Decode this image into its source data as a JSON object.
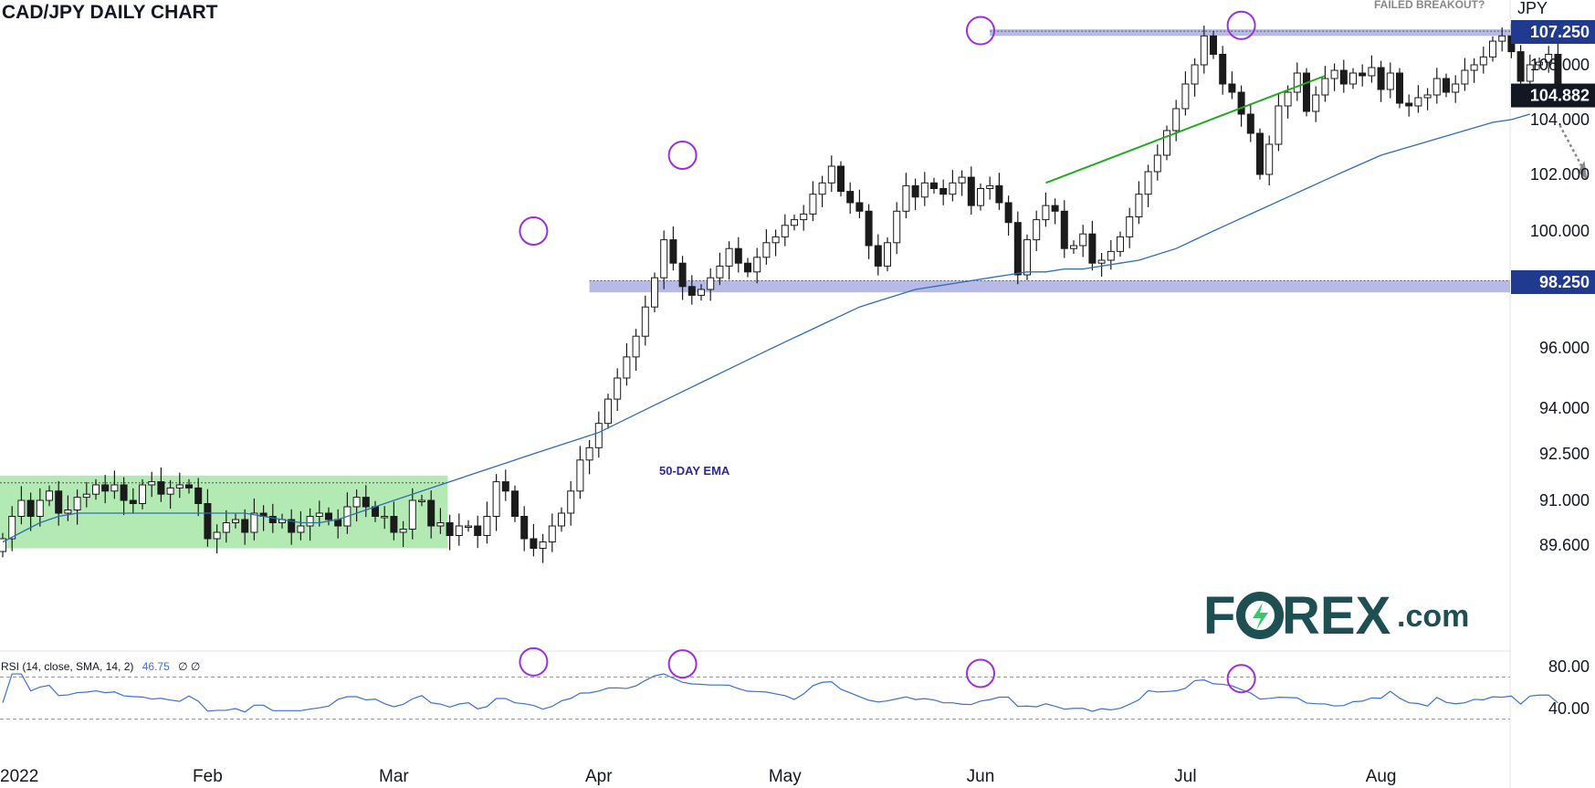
{
  "colors": {
    "bull_body": "#ffffff",
    "bear_body": "#1b1b1b",
    "wick": "#1b1b1b",
    "ema": "#2f6db5",
    "rsi": "#3a6fd8",
    "trendline": "#22aa22",
    "zone_blue": "#9fa3df",
    "zone_green": "#a6e6a6",
    "circle": "#9b30d9",
    "badge_blue": "#1f3a8f",
    "badge_dark": "#131722",
    "logo": "#1e4f53"
  },
  "logo": {
    "part1": "F",
    "part2": "REX",
    "part3": ".com"
  },
  "chart_data": {
    "type": "candlestick",
    "title": "CAD/JPY DAILY CHART",
    "currency_label": "JPY",
    "price_ticks": [
      107.25,
      106.0,
      104.882,
      104.0,
      102.0,
      100.0,
      98.25,
      96.0,
      94.0,
      92.5,
      91.0,
      89.6
    ],
    "price_tick_labels": [
      "107.250",
      "106.000",
      "104.882",
      "104.000",
      "102.000",
      "100.000",
      "98.250",
      "96.000",
      "94.000",
      "92.500",
      "91.000",
      "89.600"
    ],
    "highlighted_levels": [
      {
        "label": "107.250",
        "value": 107.25,
        "style": "blue"
      },
      {
        "label": "104.882",
        "value": 104.882,
        "style": "dark"
      },
      {
        "label": "98.250",
        "value": 98.25,
        "style": "blue"
      }
    ],
    "date_labels": [
      "2022",
      "Feb",
      "Mar",
      "Apr",
      "May",
      "Jun",
      "Jul",
      "Aug"
    ],
    "date_label_index": [
      0,
      22,
      42,
      64,
      84,
      105,
      127,
      148
    ],
    "closes": [
      89.8,
      90.5,
      91.0,
      90.5,
      91.0,
      91.3,
      90.6,
      90.7,
      91.1,
      91.2,
      91.5,
      91.3,
      91.5,
      91.0,
      90.9,
      91.5,
      91.6,
      91.2,
      91.4,
      91.5,
      91.4,
      90.9,
      89.8,
      90.0,
      90.3,
      90.4,
      90.0,
      90.6,
      90.5,
      90.3,
      90.4,
      90.0,
      90.2,
      90.5,
      90.6,
      90.4,
      90.2,
      90.8,
      91.1,
      90.8,
      90.5,
      90.5,
      90.0,
      90.1,
      91.0,
      91.0,
      90.2,
      90.3,
      89.9,
      90.2,
      90.2,
      89.9,
      90.5,
      91.6,
      91.3,
      90.5,
      89.8,
      89.5,
      89.7,
      90.2,
      90.6,
      91.3,
      92.3,
      92.7,
      93.5,
      94.3,
      95.0,
      95.7,
      96.4,
      97.4,
      98.4,
      99.7,
      98.9,
      98.1,
      97.8,
      98.0,
      98.4,
      98.8,
      99.4,
      98.9,
      98.6,
      99.1,
      99.6,
      99.8,
      100.2,
      100.4,
      100.6,
      101.3,
      101.7,
      102.3,
      101.4,
      101.0,
      100.7,
      99.5,
      98.8,
      99.6,
      100.7,
      101.6,
      101.2,
      101.7,
      101.5,
      101.3,
      101.7,
      101.9,
      100.9,
      101.5,
      101.6,
      101.0,
      100.3,
      98.5,
      99.7,
      100.4,
      100.9,
      100.7,
      99.4,
      99.5,
      99.9,
      98.9,
      99.0,
      99.3,
      99.8,
      100.5,
      101.3,
      102.1,
      102.7,
      103.6,
      104.4,
      105.3,
      106.0,
      107.1,
      106.4,
      105.3,
      105.0,
      104.2,
      103.5,
      102.0,
      103.1,
      104.5,
      105.0,
      105.7,
      104.3,
      104.9,
      105.5,
      105.8,
      105.3,
      105.7,
      105.6,
      105.9,
      105.1,
      105.7,
      104.6,
      104.5,
      104.8,
      104.9,
      105.5,
      105.0,
      105.3,
      105.8,
      106.0,
      106.3,
      106.9,
      107.1,
      106.5,
      105.4,
      106.0,
      106.1,
      106.4,
      104.882
    ],
    "ema_label": "50-DAY EMA",
    "ema_series": [
      89.7,
      90.0,
      90.3,
      90.5,
      90.6,
      90.6,
      90.6,
      90.6,
      90.6,
      90.6,
      90.6,
      90.6,
      90.6,
      90.6,
      90.5,
      90.4,
      90.3,
      90.3,
      90.4,
      90.6,
      90.8,
      91.0,
      91.2,
      91.4,
      91.6,
      91.8,
      92.0,
      92.2,
      92.4,
      92.6,
      92.8,
      93.0,
      93.2,
      93.5,
      93.8,
      94.1,
      94.4,
      94.7,
      95.0,
      95.3,
      95.6,
      95.9,
      96.2,
      96.5,
      96.8,
      97.1,
      97.4,
      97.6,
      97.8,
      98.0,
      98.1,
      98.2,
      98.3,
      98.4,
      98.5,
      98.6,
      98.6,
      98.7,
      98.7,
      98.8,
      98.9,
      99.0,
      99.2,
      99.4,
      99.7,
      100.0,
      100.3,
      100.6,
      100.9,
      101.2,
      101.5,
      101.8,
      102.1,
      102.4,
      102.7,
      102.9,
      103.1,
      103.3,
      103.5,
      103.7,
      103.9,
      104.0,
      104.2
    ],
    "ema_start_index": 82,
    "support_zone": {
      "low": 97.9,
      "high": 98.3
    },
    "resistance_zone": {
      "low": 107.1,
      "high": 107.35
    },
    "range_box": {
      "low": 89.5,
      "high": 91.8,
      "start_index": 0,
      "end_index": 47
    },
    "annotations": {
      "failed_breakout": "FAILED BREAKOUT?"
    },
    "rsi_label": "RSI (14, close, SMA, 14, 2)",
    "rsi_value": "46.75",
    "rsi_extra": "∅ ∅",
    "rsi_ticks": [
      80.0,
      40.0
    ],
    "rsi_tick_labels": [
      "80.00",
      "40.00"
    ],
    "rsi_levels": [
      70,
      30
    ]
  }
}
